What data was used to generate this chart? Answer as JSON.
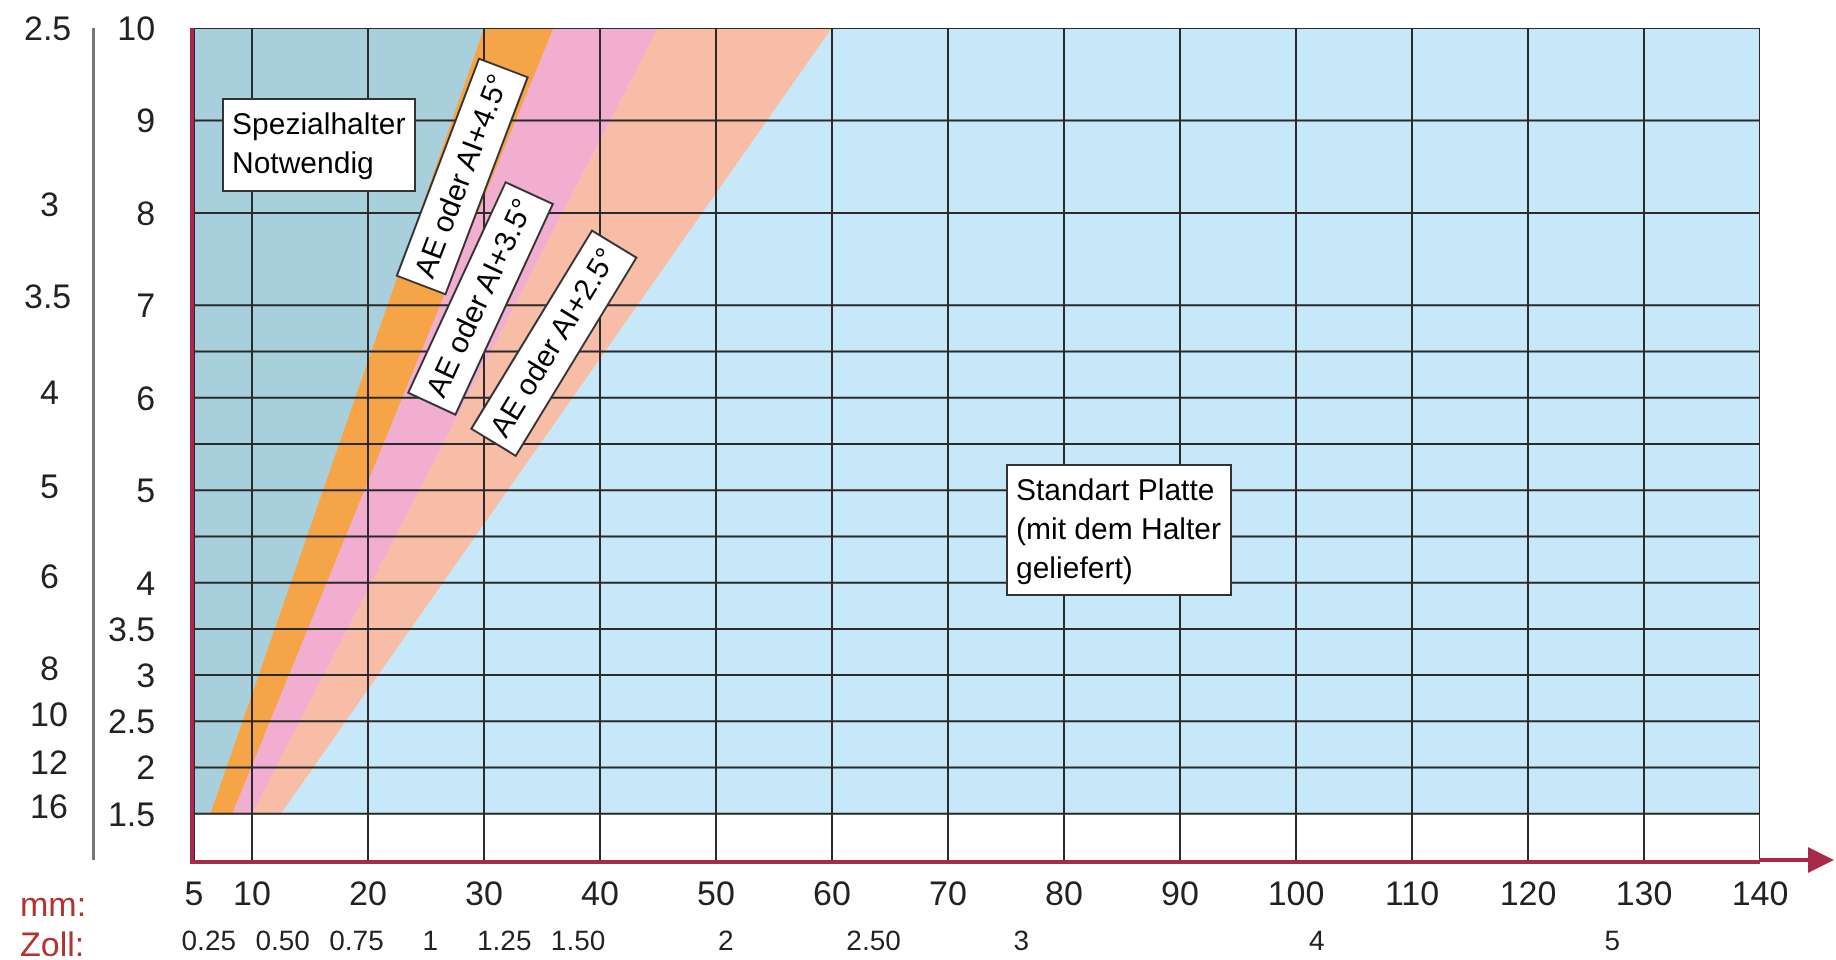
{
  "chart_data": {
    "type": "area",
    "xlabel": "mm:",
    "x2label": "Zoll:",
    "xlim": [
      5,
      140
    ],
    "xticks": [
      5,
      10,
      20,
      30,
      40,
      50,
      60,
      70,
      80,
      90,
      100,
      110,
      120,
      130,
      140
    ],
    "x2lim": [
      0.2,
      5.5
    ],
    "x2ticks": [
      0.25,
      {
        "value": 0.5,
        "label": "0.50"
      },
      0.75,
      1,
      1.25,
      {
        "value": 1.5,
        "label": "1.50"
      },
      2,
      {
        "value": 2.5,
        "label": "2.50"
      },
      3,
      4,
      5
    ],
    "ylim": [
      1,
      10
    ],
    "yticks": [
      1.5,
      2,
      2.5,
      3,
      3.5,
      4,
      {
        "value": 4.5,
        "label": null
      },
      5,
      {
        "value": 5.5,
        "label": null
      },
      6,
      {
        "value": 6.5,
        "label": null
      },
      7,
      8,
      9,
      10
    ],
    "annotations": [
      "2.5",
      "3",
      "3.5",
      "4",
      "5",
      "6",
      "8",
      "10",
      "12",
      "16"
    ],
    "grid": true,
    "legend": false,
    "series": [
      {
        "name": "Spezialhalter\nNotwendig",
        "color": "#a8d0dc",
        "x": [
          5,
          6.4,
          30,
          5
        ],
        "values": [
          1.5,
          1.5,
          10,
          10
        ]
      },
      {
        "name": "AE oder AI+4.5°",
        "color": "#f5a447",
        "x": [
          6.4,
          8.3,
          36,
          30
        ],
        "values": [
          1.5,
          1.5,
          10,
          10
        ]
      },
      {
        "name": "AE oder AI+3.5°",
        "color": "#f2aed0",
        "x": [
          8.3,
          10,
          45,
          36
        ],
        "values": [
          1.5,
          1.5,
          10,
          10
        ]
      },
      {
        "name": "AE oder AI+2.5°",
        "color": "#f8bda6",
        "x": [
          10,
          12.5,
          60,
          45
        ],
        "values": [
          1.5,
          1.5,
          10,
          10
        ]
      },
      {
        "name": "Standart Platte\n(mit dem Halter\ngeliefert)",
        "color": "#c6e8f8",
        "x": [
          12.5,
          140,
          140,
          60
        ],
        "values": [
          1.5,
          1.5,
          10,
          10
        ]
      }
    ]
  }
}
